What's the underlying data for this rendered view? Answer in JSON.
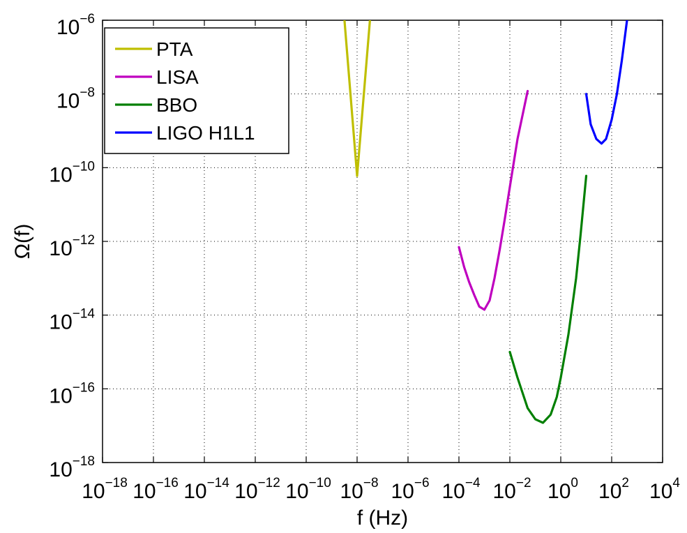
{
  "chart_data": {
    "type": "line",
    "xlabel": "f (Hz)",
    "ylabel": "Ω(f)",
    "xscale": "log",
    "yscale": "log",
    "xlim": [
      1e-18,
      10000.0
    ],
    "ylim": [
      1e-18,
      1e-06
    ],
    "grid": true,
    "legend_position": "top-left",
    "x_tick_labels": [
      {
        "base": "10",
        "exp": "−18"
      },
      {
        "base": "10",
        "exp": "−16"
      },
      {
        "base": "10",
        "exp": "−14"
      },
      {
        "base": "10",
        "exp": "−12"
      },
      {
        "base": "10",
        "exp": "−10"
      },
      {
        "base": "10",
        "exp": "−8"
      },
      {
        "base": "10",
        "exp": "−6"
      },
      {
        "base": "10",
        "exp": "−4"
      },
      {
        "base": "10",
        "exp": "−2"
      },
      {
        "base": "10",
        "exp": "0"
      },
      {
        "base": "10",
        "exp": "2"
      },
      {
        "base": "10",
        "exp": "4"
      }
    ],
    "y_tick_labels": [
      {
        "base": "10",
        "exp": "−18"
      },
      {
        "base": "10",
        "exp": "−16"
      },
      {
        "base": "10",
        "exp": "−14"
      },
      {
        "base": "10",
        "exp": "−12"
      },
      {
        "base": "10",
        "exp": "−10"
      },
      {
        "base": "10",
        "exp": "−8"
      },
      {
        "base": "10",
        "exp": "−6"
      }
    ],
    "series": [
      {
        "name": "PTA",
        "color": "#bfbf00",
        "points": [
          [
            3.2e-09,
            1e-06
          ],
          [
            1e-08,
            6e-11
          ],
          [
            3.2e-08,
            1e-06
          ]
        ]
      },
      {
        "name": "LISA",
        "color": "#bf00bf",
        "points": [
          [
            0.0001,
            7e-13
          ],
          [
            0.00016,
            2e-13
          ],
          [
            0.00025,
            8e-14
          ],
          [
            0.0004,
            3.5e-14
          ],
          [
            0.00063,
            1.7e-14
          ],
          [
            0.001,
            1.4e-14
          ],
          [
            0.0016,
            2.5e-14
          ],
          [
            0.0025,
            1e-13
          ],
          [
            0.004,
            6e-13
          ],
          [
            0.0063,
            4e-12
          ],
          [
            0.01,
            3e-11
          ],
          [
            0.02,
            6e-10
          ],
          [
            0.05,
            1.2e-08
          ]
        ]
      },
      {
        "name": "BBO",
        "color": "#007f00",
        "points": [
          [
            0.01,
            1e-15
          ],
          [
            0.02,
            2e-16
          ],
          [
            0.05,
            3e-17
          ],
          [
            0.1,
            1.5e-17
          ],
          [
            0.2,
            1.2e-17
          ],
          [
            0.4,
            2e-17
          ],
          [
            0.7,
            6e-17
          ],
          [
            1,
            2e-16
          ],
          [
            2,
            3e-15
          ],
          [
            4,
            1e-13
          ],
          [
            6,
            1.5e-12
          ],
          [
            10,
            6e-11
          ]
        ]
      },
      {
        "name": "LIGO H1L1",
        "color": "#0000ff",
        "points": [
          [
            10,
            1e-08
          ],
          [
            15,
            1.5e-09
          ],
          [
            25,
            6e-10
          ],
          [
            40,
            4.5e-10
          ],
          [
            60,
            6e-10
          ],
          [
            100,
            2e-09
          ],
          [
            160,
            1e-08
          ],
          [
            250,
            8e-08
          ],
          [
            400,
            1e-06
          ]
        ]
      }
    ]
  }
}
